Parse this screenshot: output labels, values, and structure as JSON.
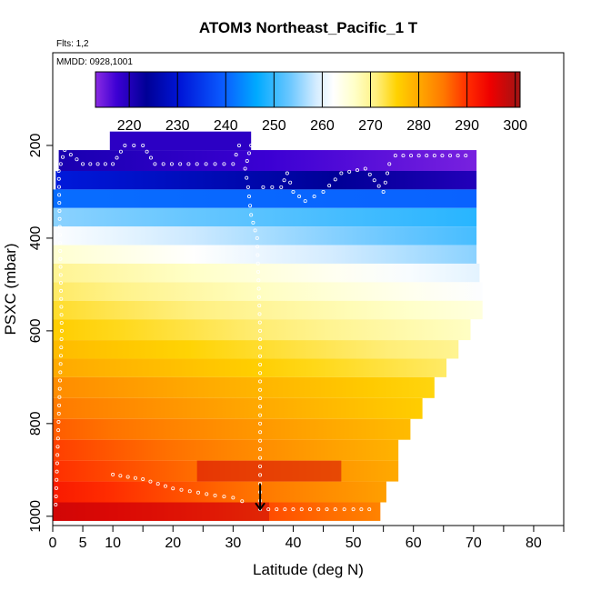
{
  "chart_data": {
    "type": "heatmap",
    "title": "ATOM3 Northeast_Pacific_1 T",
    "flights_note": "Flts: 1,2",
    "date_note": "MMDD: 0928,1001",
    "xlabel": "Latitude (deg N)",
    "ylabel": "PSXC (mbar)",
    "xlim": [
      0,
      85
    ],
    "ylim": [
      1020,
      0
    ],
    "x_ticks": [
      0,
      5,
      10,
      20,
      30,
      40,
      50,
      60,
      70,
      80
    ],
    "x_minor_ticks": [
      15,
      25,
      35,
      45,
      55,
      65,
      75,
      85
    ],
    "y_ticks": [
      200,
      400,
      600,
      800,
      1000
    ],
    "colorbar": {
      "min": 213,
      "max": 301,
      "ticks": [
        220,
        230,
        240,
        250,
        260,
        270,
        280,
        290,
        300
      ]
    },
    "marker": {
      "latitude": 34.5,
      "pressure": 985,
      "shape": "down-arrow"
    },
    "layers": [
      {
        "p_top": 170,
        "p_bot": 210,
        "lat_min": 9.5,
        "lat_max": 33.0,
        "t_start": 219,
        "t_end": 219
      },
      {
        "p_top": 210,
        "p_bot": 255,
        "lat_min": 1.0,
        "lat_max": 70.5,
        "t_start": 221,
        "t_end": 214
      },
      {
        "p_top": 255,
        "p_bot": 295,
        "lat_min": 0.5,
        "lat_max": 70.5,
        "t_start": 231,
        "t_end": 220
      },
      {
        "p_top": 295,
        "p_bot": 335,
        "lat_min": 0.0,
        "lat_max": 70.5,
        "t_start": 241,
        "t_end": 240
      },
      {
        "p_top": 335,
        "p_bot": 375,
        "lat_min": 0.0,
        "lat_max": 70.5,
        "t_start": 255,
        "t_end": 249
      },
      {
        "p_top": 375,
        "p_bot": 415,
        "lat_min": 0.0,
        "lat_max": 70.5,
        "t_start": 262,
        "t_end": 251
      },
      {
        "p_top": 415,
        "p_bot": 455,
        "lat_min": 0.0,
        "lat_max": 70.5,
        "t_start": 266,
        "t_end": 255
      },
      {
        "p_top": 455,
        "p_bot": 495,
        "lat_min": 0.0,
        "lat_max": 71.0,
        "t_start": 270,
        "t_end": 260
      },
      {
        "p_top": 495,
        "p_bot": 535,
        "lat_min": 0.0,
        "lat_max": 71.5,
        "t_start": 272,
        "t_end": 262
      },
      {
        "p_top": 535,
        "p_bot": 575,
        "lat_min": 0.0,
        "lat_max": 71.5,
        "t_start": 274,
        "t_end": 265
      },
      {
        "p_top": 575,
        "p_bot": 620,
        "lat_min": 0.0,
        "lat_max": 69.5,
        "t_start": 276,
        "t_end": 267
      },
      {
        "p_top": 620,
        "p_bot": 660,
        "lat_min": 0.0,
        "lat_max": 67.5,
        "t_start": 278,
        "t_end": 270
      },
      {
        "p_top": 660,
        "p_bot": 700,
        "lat_min": 0.0,
        "lat_max": 65.5,
        "t_start": 280,
        "t_end": 272
      },
      {
        "p_top": 700,
        "p_bot": 745,
        "lat_min": 0.0,
        "lat_max": 63.5,
        "t_start": 283,
        "t_end": 275
      },
      {
        "p_top": 745,
        "p_bot": 790,
        "lat_min": 0.0,
        "lat_max": 61.5,
        "t_start": 285,
        "t_end": 276
      },
      {
        "p_top": 790,
        "p_bot": 835,
        "lat_min": 0.0,
        "lat_max": 59.5,
        "t_start": 287,
        "t_end": 278
      },
      {
        "p_top": 835,
        "p_bot": 880,
        "lat_min": 0.0,
        "lat_max": 57.5,
        "t_start": 289,
        "t_end": 279
      },
      {
        "p_top": 880,
        "p_bot": 925,
        "lat_min": 0.0,
        "lat_max": 57.5,
        "t_start": 290,
        "t_end": 280
      },
      {
        "p_top": 925,
        "p_bot": 970,
        "lat_min": 0.0,
        "lat_max": 55.5,
        "t_start": 292,
        "t_end": 281
      },
      {
        "p_top": 970,
        "p_bot": 1010,
        "lat_min": 0.0,
        "lat_max": 54.5,
        "t_start": 296,
        "t_end": 284
      }
    ],
    "hot_patches": [
      {
        "p_top": 880,
        "p_bot": 925,
        "lat_min": 24.0,
        "lat_max": 48.0,
        "t": 297
      },
      {
        "p_top": 970,
        "p_bot": 1010,
        "lat_min": 0.0,
        "lat_max": 36.0,
        "t": 298
      }
    ],
    "flight_track_segments": [
      [
        [
          0.5,
          975
        ],
        [
          1.5,
          600
        ],
        [
          1.0,
          255
        ],
        [
          2,
          210
        ],
        [
          5,
          240
        ],
        [
          10,
          240
        ],
        [
          12,
          200
        ],
        [
          15,
          200
        ],
        [
          17,
          240
        ],
        [
          24,
          240
        ],
        [
          30,
          240
        ],
        [
          31,
          200
        ],
        [
          33,
          200
        ]
      ],
      [
        [
          33,
          200
        ],
        [
          32,
          250
        ],
        [
          32.5,
          290
        ],
        [
          33,
          350
        ],
        [
          34,
          400
        ],
        [
          34.5,
          600
        ],
        [
          34.5,
          800
        ],
        [
          34.5,
          985
        ],
        [
          40,
          985
        ],
        [
          47,
          985
        ],
        [
          50,
          985
        ],
        [
          54,
          985
        ]
      ],
      [
        [
          35,
          290
        ],
        [
          38,
          290
        ],
        [
          39,
          260
        ],
        [
          40,
          300
        ],
        [
          42,
          320
        ],
        [
          45,
          300
        ],
        [
          48,
          260
        ],
        [
          52,
          250
        ],
        [
          55,
          300
        ],
        [
          56,
          240
        ],
        [
          57,
          222
        ],
        [
          70,
          222
        ]
      ],
      [
        [
          10,
          910
        ],
        [
          15,
          920
        ],
        [
          20,
          940
        ],
        [
          27,
          955
        ],
        [
          30,
          960
        ],
        [
          33,
          975
        ]
      ]
    ]
  }
}
